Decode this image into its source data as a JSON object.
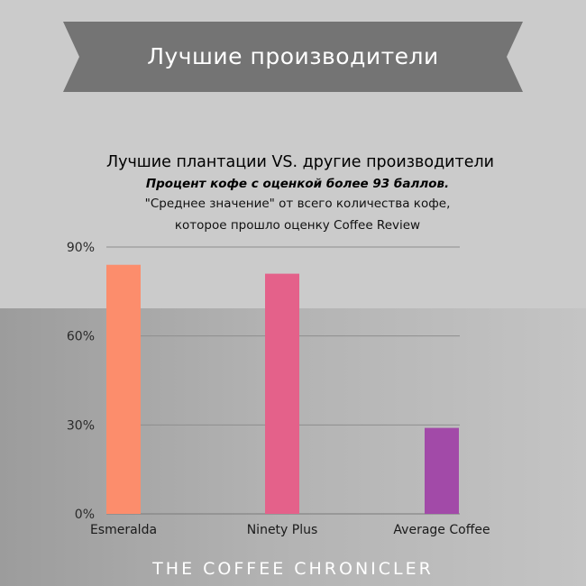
{
  "banner": {
    "title": "Лучшие производители"
  },
  "chart_data": {
    "type": "bar",
    "title": "Лучшие плантации VS. другие производители",
    "subtitle": "Процент кофе с оценкой более 93 баллов.",
    "note_line1": "\"Среднее значение\" от всего количества кофе,",
    "note_line2": "которое прошло оценку Coffee Review",
    "categories": [
      "Esmeralda",
      "Ninety Plus",
      "Average Coffee"
    ],
    "values": [
      84,
      81,
      29
    ],
    "colors": [
      "#fc8d6c",
      "#e4618a",
      "#a24aa8"
    ],
    "yticks": [
      0,
      30,
      60,
      90
    ],
    "ytick_labels": [
      "0%",
      "30%",
      "60%",
      "90%"
    ],
    "ylim": [
      0,
      90
    ],
    "grid": true
  },
  "footer": {
    "brand": "THE COFFEE CHRONICLER"
  }
}
